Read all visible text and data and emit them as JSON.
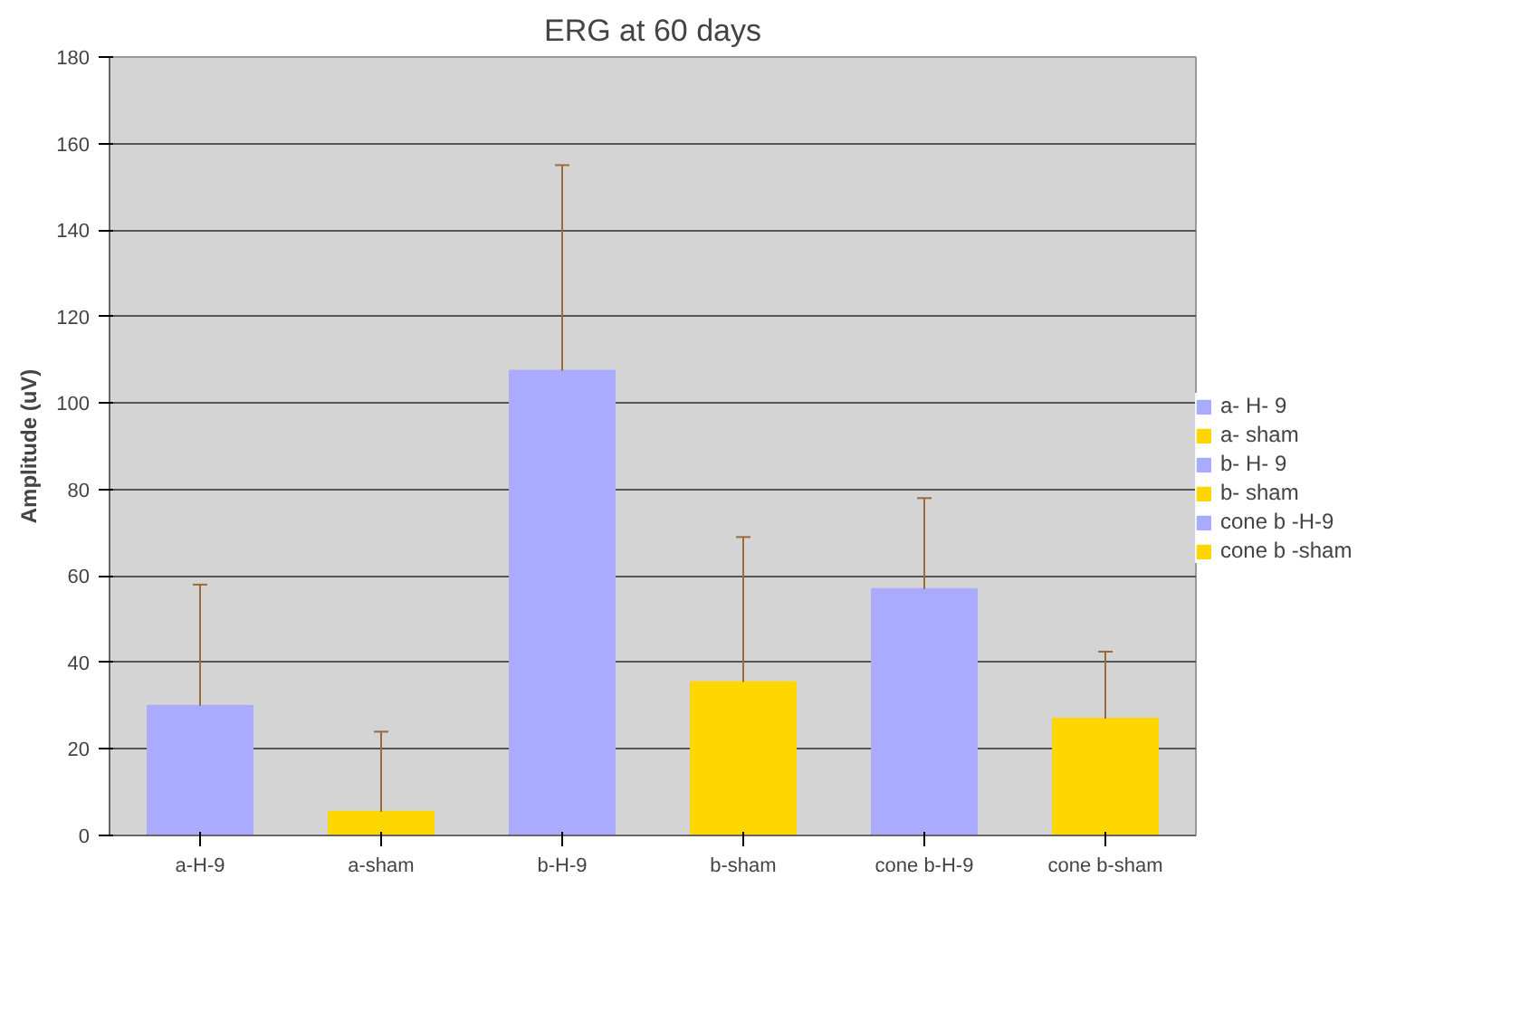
{
  "chart_data": {
    "type": "bar",
    "title": "ERG at 60 days",
    "ylabel": "Amplitude (uV)",
    "categories": [
      "a-H-9",
      "a-sham",
      "b-H-9",
      "b-sham",
      "cone b-H-9",
      "cone b-sham"
    ],
    "series": [
      {
        "name": "a- H- 9",
        "color": "#aaaaff",
        "values": [
          30,
          null,
          null,
          null,
          null,
          null
        ],
        "errors": [
          [
            30,
            58
          ],
          null,
          null,
          null,
          null,
          null
        ]
      },
      {
        "name": "a- sham",
        "color": "#ffd700",
        "values": [
          null,
          5.5,
          null,
          null,
          null,
          null
        ],
        "errors": [
          null,
          [
            5.5,
            24
          ],
          null,
          null,
          null,
          null
        ]
      },
      {
        "name": "b- H- 9",
        "color": "#aaaaff",
        "values": [
          null,
          null,
          107.5,
          null,
          null,
          null
        ],
        "errors": [
          null,
          null,
          [
            107.5,
            155
          ],
          null,
          null,
          null
        ]
      },
      {
        "name": "b- sham",
        "color": "#ffd700",
        "values": [
          null,
          null,
          null,
          35.5,
          null,
          null
        ],
        "errors": [
          null,
          null,
          null,
          [
            35.5,
            69
          ],
          null,
          null
        ]
      },
      {
        "name": "cone b -H-9",
        "color": "#aaaaff",
        "values": [
          null,
          null,
          null,
          null,
          57,
          null
        ],
        "errors": [
          null,
          null,
          null,
          null,
          [
            57,
            78
          ],
          null
        ]
      },
      {
        "name": "cone b -sham",
        "color": "#ffd700",
        "values": [
          null,
          null,
          null,
          null,
          null,
          27
        ],
        "errors": [
          null,
          null,
          null,
          null,
          null,
          [
            27,
            42.5
          ]
        ]
      }
    ],
    "ylim": [
      0,
      180
    ],
    "yticks": [
      0,
      20,
      40,
      60,
      80,
      100,
      120,
      140,
      160,
      180
    ],
    "grid": "y",
    "legend": "right"
  }
}
